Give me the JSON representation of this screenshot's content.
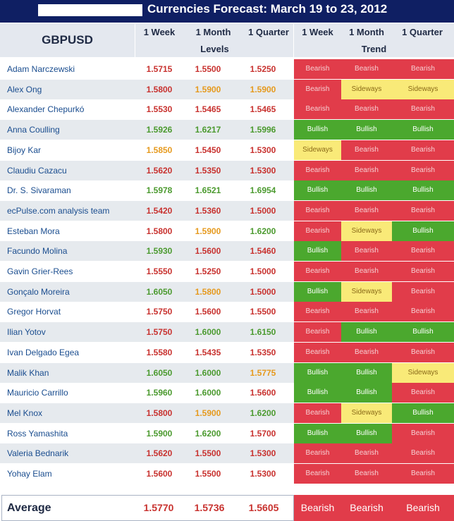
{
  "title": "Currencies Forecast: March 19 to 23, 2012",
  "pair": "GBPUSD",
  "headers": {
    "levels_cols": [
      "1 Week",
      "1 Month",
      "1 Quarter"
    ],
    "trend_cols": [
      "1 Week",
      "1 Month",
      "1 Quarter"
    ],
    "levels_group": "Levels",
    "trend_group": "Trend"
  },
  "colors": {
    "bearish_bg": "#e13c4a",
    "bullish_bg": "#4ba82e",
    "sideways_bg": "#f9ea78",
    "level_red": "#c8322f",
    "level_green": "#4b9a2f",
    "level_orange": "#e69a1e",
    "trend_text_light": "#f5d0d3",
    "trend_text_dark": "#8a6a18"
  },
  "rows": [
    {
      "name": "Adam Narczewski",
      "levels": [
        "1.5715",
        "1.5500",
        "1.5250"
      ],
      "trend": [
        "Bearish",
        "Bearish",
        "Bearish"
      ]
    },
    {
      "name": "Alex Ong",
      "levels": [
        "1.5800",
        "1.5900",
        "1.5900"
      ],
      "trend": [
        "Bearish",
        "Sideways",
        "Sideways"
      ]
    },
    {
      "name": "Alexander Chepurkó",
      "levels": [
        "1.5530",
        "1.5465",
        "1.5465"
      ],
      "trend": [
        "Bearish",
        "Bearish",
        "Bearish"
      ]
    },
    {
      "name": "Anna Coulling",
      "levels": [
        "1.5926",
        "1.6217",
        "1.5996"
      ],
      "trend": [
        "Bullish",
        "Bullish",
        "Bullish"
      ]
    },
    {
      "name": "Bijoy Kar",
      "levels": [
        "1.5850",
        "1.5450",
        "1.5300"
      ],
      "trend": [
        "Sideways",
        "Bearish",
        "Bearish"
      ]
    },
    {
      "name": "Claudiu Cazacu",
      "levels": [
        "1.5620",
        "1.5350",
        "1.5300"
      ],
      "trend": [
        "Bearish",
        "Bearish",
        "Bearish"
      ]
    },
    {
      "name": "Dr. S. Sivaraman",
      "levels": [
        "1.5978",
        "1.6521",
        "1.6954"
      ],
      "trend": [
        "Bullish",
        "Bullish",
        "Bullish"
      ]
    },
    {
      "name": "ecPulse.com analysis team",
      "levels": [
        "1.5420",
        "1.5360",
        "1.5000"
      ],
      "trend": [
        "Bearish",
        "Bearish",
        "Bearish"
      ]
    },
    {
      "name": "Esteban Mora",
      "levels": [
        "1.5800",
        "1.5900",
        "1.6200"
      ],
      "trend": [
        "Bearish",
        "Sideways",
        "Bullish"
      ]
    },
    {
      "name": "Facundo Molina",
      "levels": [
        "1.5930",
        "1.5600",
        "1.5460"
      ],
      "trend": [
        "Bullish",
        "Bearish",
        "Bearish"
      ]
    },
    {
      "name": "Gavin Grier-Rees",
      "levels": [
        "1.5550",
        "1.5250",
        "1.5000"
      ],
      "trend": [
        "Bearish",
        "Bearish",
        "Bearish"
      ]
    },
    {
      "name": "Gonçalo Moreira",
      "levels": [
        "1.6050",
        "1.5800",
        "1.5000"
      ],
      "trend": [
        "Bullish",
        "Sideways",
        "Bearish"
      ]
    },
    {
      "name": "Gregor Horvat",
      "levels": [
        "1.5750",
        "1.5600",
        "1.5500"
      ],
      "trend": [
        "Bearish",
        "Bearish",
        "Bearish"
      ]
    },
    {
      "name": "Ilian Yotov",
      "levels": [
        "1.5750",
        "1.6000",
        "1.6150"
      ],
      "trend": [
        "Bearish",
        "Bullish",
        "Bullish"
      ]
    },
    {
      "name": "Ivan Delgado Egea",
      "levels": [
        "1.5580",
        "1.5435",
        "1.5350"
      ],
      "trend": [
        "Bearish",
        "Bearish",
        "Bearish"
      ]
    },
    {
      "name": "Malik Khan",
      "levels": [
        "1.6050",
        "1.6000",
        "1.5775"
      ],
      "trend": [
        "Bullish",
        "Bullish",
        "Sideways"
      ]
    },
    {
      "name": "Mauricio Carrillo",
      "levels": [
        "1.5960",
        "1.6000",
        "1.5600"
      ],
      "trend": [
        "Bullish",
        "Bullish",
        "Bearish"
      ]
    },
    {
      "name": "Mel Knox",
      "levels": [
        "1.5800",
        "1.5900",
        "1.6200"
      ],
      "trend": [
        "Bearish",
        "Sideways",
        "Bullish"
      ]
    },
    {
      "name": "Ross Yamashita",
      "levels": [
        "1.5900",
        "1.6200",
        "1.5700"
      ],
      "trend": [
        "Bullish",
        "Bullish",
        "Bearish"
      ]
    },
    {
      "name": "Valeria Bednarik",
      "levels": [
        "1.5620",
        "1.5500",
        "1.5300"
      ],
      "trend": [
        "Bearish",
        "Bearish",
        "Bearish"
      ]
    },
    {
      "name": "Yohay Elam",
      "levels": [
        "1.5600",
        "1.5500",
        "1.5300"
      ],
      "trend": [
        "Bearish",
        "Bearish",
        "Bearish"
      ]
    }
  ],
  "average": {
    "label": "Average",
    "levels": [
      "1.5770",
      "1.5736",
      "1.5605"
    ],
    "trend": [
      "Bearish",
      "Bearish",
      "Bearish"
    ]
  }
}
